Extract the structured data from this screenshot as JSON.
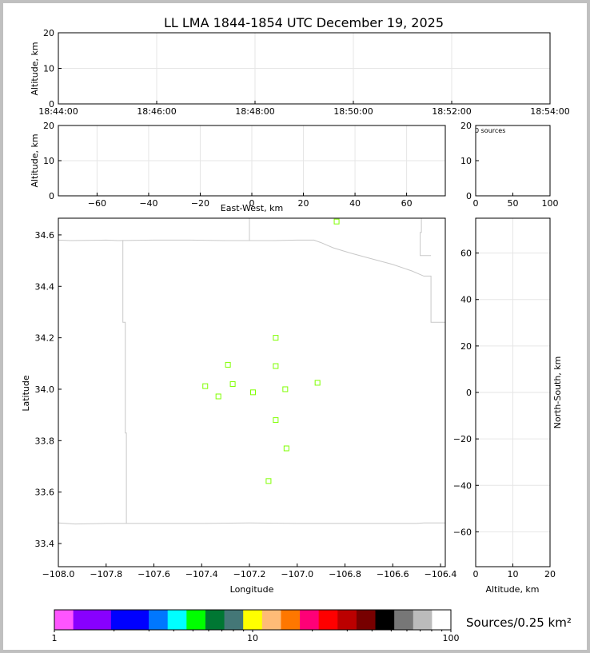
{
  "title": "LL LMA 1844-1854 UTC December 19, 2025",
  "chart_data": [
    {
      "type": "scatter",
      "name": "altitude-vs-time",
      "xlabel": "",
      "ylabel": "Altitude, km",
      "xticks": [
        "18:44:00",
        "18:46:00",
        "18:48:00",
        "18:50:00",
        "18:52:00",
        "18:54:00"
      ],
      "yticks": [
        0,
        10,
        20
      ],
      "ylim": [
        0,
        20
      ],
      "points": []
    },
    {
      "type": "scatter",
      "name": "altitude-vs-east-west",
      "xlabel": "East-West, km",
      "ylabel": "Altitude, km",
      "xlim": [
        -75,
        75
      ],
      "ylim": [
        0,
        20
      ],
      "xticks": [
        -60,
        -40,
        -20,
        0,
        20,
        40,
        60
      ],
      "yticks": [
        0,
        10,
        20
      ],
      "points": []
    },
    {
      "type": "bar",
      "name": "source-count-histogram",
      "annotation": "0 sources",
      "xlim": [
        0,
        100
      ],
      "ylim": [
        0,
        20
      ],
      "xticks": [
        0,
        50,
        100
      ],
      "yticks": [
        0,
        10,
        20
      ],
      "values": []
    },
    {
      "type": "scatter",
      "name": "plan-view-map",
      "xlabel": "Longitude",
      "ylabel": "Latitude",
      "xlim": [
        -108.0,
        -106.38
      ],
      "ylim": [
        33.31,
        34.665
      ],
      "xticks": [
        "−108.0",
        "−107.8",
        "−107.6",
        "−107.4",
        "−107.2",
        "−107.0",
        "−106.8",
        "−106.6",
        "−106.4"
      ],
      "yticks": [
        "33.4",
        "33.6",
        "33.8",
        "34.0",
        "34.2",
        "34.4",
        "34.6"
      ],
      "marker_color": "#7fff00",
      "stations": [
        {
          "lon": -106.835,
          "lat": 34.652
        },
        {
          "lon": -107.09,
          "lat": 34.2
        },
        {
          "lon": -107.29,
          "lat": 34.095
        },
        {
          "lon": -107.09,
          "lat": 34.09
        },
        {
          "lon": -106.915,
          "lat": 34.025
        },
        {
          "lon": -107.27,
          "lat": 34.02
        },
        {
          "lon": -107.385,
          "lat": 34.012
        },
        {
          "lon": -107.05,
          "lat": 34.0
        },
        {
          "lon": -107.185,
          "lat": 33.988
        },
        {
          "lon": -107.33,
          "lat": 33.972
        },
        {
          "lon": -107.09,
          "lat": 33.88
        },
        {
          "lon": -107.045,
          "lat": 33.77
        },
        {
          "lon": -107.12,
          "lat": 33.643
        }
      ],
      "boundaries": [
        [
          [
            -108.0,
            34.58
          ],
          [
            -107.95,
            34.578
          ],
          [
            -107.8,
            34.58
          ],
          [
            -107.75,
            34.578
          ],
          [
            -107.6,
            34.58
          ],
          [
            -107.45,
            34.58
          ],
          [
            -107.3,
            34.578
          ],
          [
            -107.2,
            34.578
          ],
          [
            -107.1,
            34.578
          ],
          [
            -107.0,
            34.58
          ],
          [
            -106.93,
            34.58
          ],
          [
            -106.9,
            34.57
          ],
          [
            -106.85,
            34.55
          ],
          [
            -106.78,
            34.53
          ],
          [
            -106.7,
            34.51
          ],
          [
            -106.6,
            34.485
          ],
          [
            -106.52,
            34.46
          ],
          [
            -106.47,
            34.44
          ],
          [
            -106.44,
            34.44
          ],
          [
            -106.44,
            34.26
          ],
          [
            -106.38,
            34.26
          ]
        ],
        [
          [
            -107.73,
            34.58
          ],
          [
            -107.73,
            34.26
          ],
          [
            -107.72,
            34.26
          ],
          [
            -107.72,
            33.83
          ],
          [
            -107.715,
            33.83
          ],
          [
            -107.715,
            33.478
          ]
        ],
        [
          [
            -108.0,
            33.48
          ],
          [
            -107.93,
            33.476
          ],
          [
            -107.8,
            33.478
          ],
          [
            -107.6,
            33.478
          ],
          [
            -107.4,
            33.478
          ],
          [
            -107.2,
            33.48
          ],
          [
            -107.0,
            33.478
          ],
          [
            -106.8,
            33.478
          ],
          [
            -106.6,
            33.478
          ],
          [
            -106.5,
            33.478
          ],
          [
            -106.47,
            33.48
          ],
          [
            -106.38,
            33.48
          ]
        ],
        [
          [
            -107.2,
            34.665
          ],
          [
            -107.2,
            34.578
          ]
        ],
        [
          [
            -106.48,
            34.665
          ],
          [
            -106.48,
            34.61
          ],
          [
            -106.485,
            34.61
          ],
          [
            -106.485,
            34.52
          ],
          [
            -106.44,
            34.52
          ]
        ]
      ]
    },
    {
      "type": "scatter",
      "name": "north-south-vs-altitude",
      "xlabel": "Altitude, km",
      "ylabel": "North-South, km",
      "xlim": [
        0,
        20
      ],
      "ylim": [
        -75,
        75
      ],
      "xticks": [
        0,
        10,
        20
      ],
      "yticks": [
        -60,
        -40,
        -20,
        0,
        20,
        40,
        60
      ],
      "points": []
    }
  ],
  "colorbar": {
    "label": "Sources/0.25 km²",
    "ticks": [
      "1",
      "10",
      "100"
    ],
    "colors": [
      "#ff55ff",
      "#8800ff",
      "#8800ff",
      "#0000ff",
      "#0000ff",
      "#0077ff",
      "#00ffff",
      "#00ff00",
      "#007733",
      "#447777",
      "#ffff00",
      "#ffbb77",
      "#ff7700",
      "#ff0077",
      "#ff0000",
      "#bb0000",
      "#770000",
      "#000000",
      "#777777",
      "#bbbbbb",
      "#ffffff"
    ]
  }
}
